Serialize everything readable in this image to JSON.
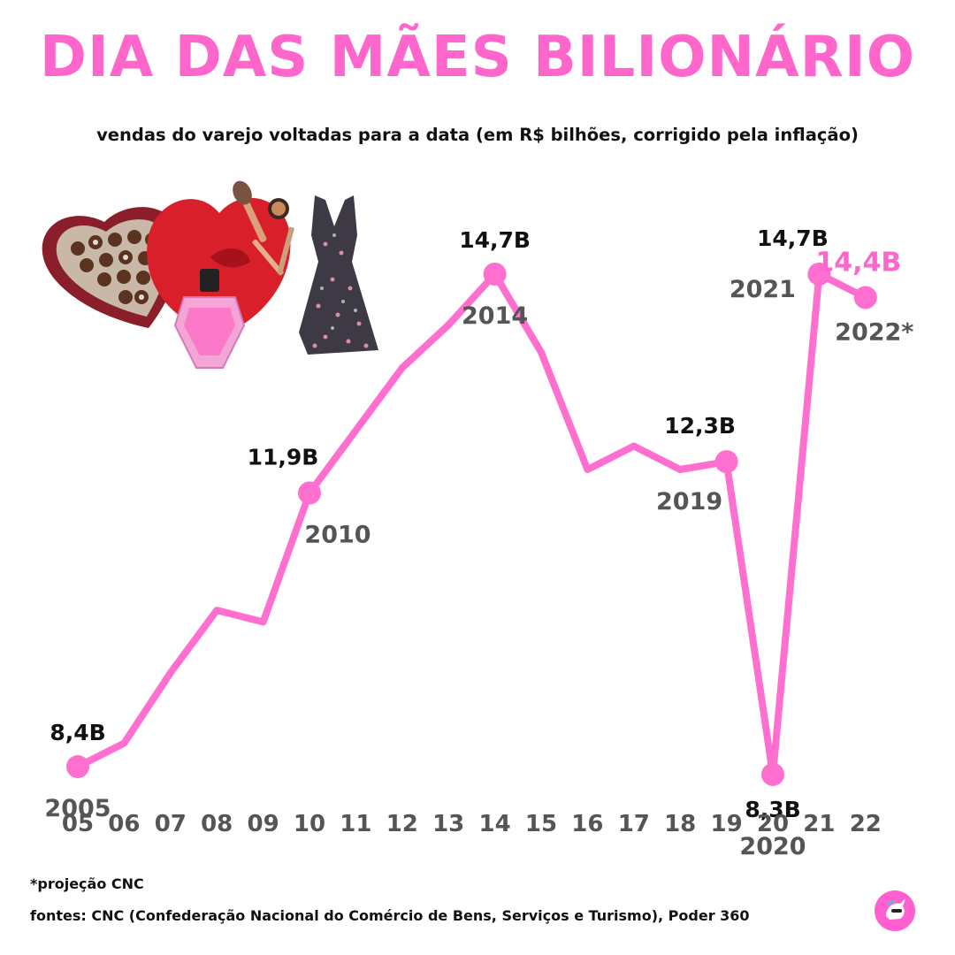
{
  "title": "DIA DAS MÃES BILIONÁRIO",
  "subtitle": "vendas do varejo voltadas para a data (em R$ bilhões, corrigido pela inflação)",
  "footnote": "*projeção CNC",
  "sources": "fontes: CNC (Confederação Nacional do Comércio de Bens, Serviços e Turismo), Poder 360",
  "colors": {
    "accent": "#ff66cc",
    "line": "#ff6fcf",
    "year_label": "#555555",
    "value_label": "#111111"
  },
  "illustration": {
    "icons": [
      "chocolate-box-icon",
      "perfume-bottle-icon",
      "makeup-brush-icon",
      "dress-icon"
    ]
  },
  "chart_data": {
    "type": "line",
    "x": [
      "05",
      "06",
      "07",
      "08",
      "09",
      "10",
      "11",
      "12",
      "13",
      "14",
      "15",
      "16",
      "17",
      "18",
      "19",
      "20",
      "21",
      "22"
    ],
    "values": [
      8.4,
      8.7,
      9.6,
      10.4,
      10.25,
      11.9,
      12.7,
      13.5,
      14.05,
      14.7,
      13.7,
      12.2,
      12.5,
      12.2,
      12.3,
      8.3,
      14.7,
      14.4
    ],
    "ylim": [
      6.5,
      16.0
    ],
    "highlights": [
      {
        "index": 0,
        "value_label": "8,4B",
        "year_label": "2005",
        "label_pos": "above",
        "year_pos": "below",
        "accent": false
      },
      {
        "index": 5,
        "value_label": "11,9B",
        "year_label": "2010",
        "label_pos": "above-left",
        "year_pos": "below",
        "accent": false
      },
      {
        "index": 9,
        "value_label": "14,7B",
        "year_label": "2014",
        "label_pos": "above",
        "year_pos": "below",
        "accent": false
      },
      {
        "index": 14,
        "value_label": "12,3B",
        "year_label": "2019",
        "label_pos": "above-left",
        "year_pos": "below-left",
        "accent": false
      },
      {
        "index": 15,
        "value_label": "8,3B",
        "year_label": "2020",
        "label_pos": "below",
        "year_pos": "below",
        "accent": false
      },
      {
        "index": 16,
        "value_label": "14,7B",
        "year_label": "2021",
        "label_pos": "above-left",
        "year_pos": "left",
        "accent": false
      },
      {
        "index": 17,
        "value_label": "14,4B",
        "year_label": "2022*",
        "label_pos": "above",
        "year_pos": "below",
        "accent": true
      }
    ]
  }
}
